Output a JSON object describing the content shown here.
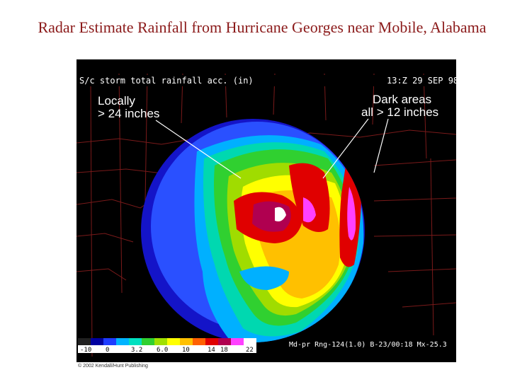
{
  "title": "Radar Estimate Rainfall from Hurricane Georges near Mobile, Alabama",
  "radar": {
    "header_left": "S/c storm total rainfall acc. (in)",
    "header_right": "13:Z 29 SEP 98",
    "annotation_left": [
      "Locally",
      "> 24 inches"
    ],
    "annotation_right": [
      "Dark areas",
      "all > 12 inches"
    ]
  },
  "legend": {
    "ticks": [
      "-10",
      "0",
      "3.2",
      "6.0",
      "10",
      "14",
      "18",
      "22"
    ],
    "colors": [
      "#202020",
      "#0000a0",
      "#1e3cff",
      "#00b4ff",
      "#00e0c0",
      "#30d030",
      "#a0e000",
      "#ffff00",
      "#ffc000",
      "#ff6000",
      "#e00000",
      "#b00050",
      "#ff40ff",
      "#ffffff"
    ],
    "info": "Md-pr Rng-124(1.0) B-23/00:18 Mx-25.3"
  },
  "copyright": "© 2002 Kendall/Hunt Publishing"
}
